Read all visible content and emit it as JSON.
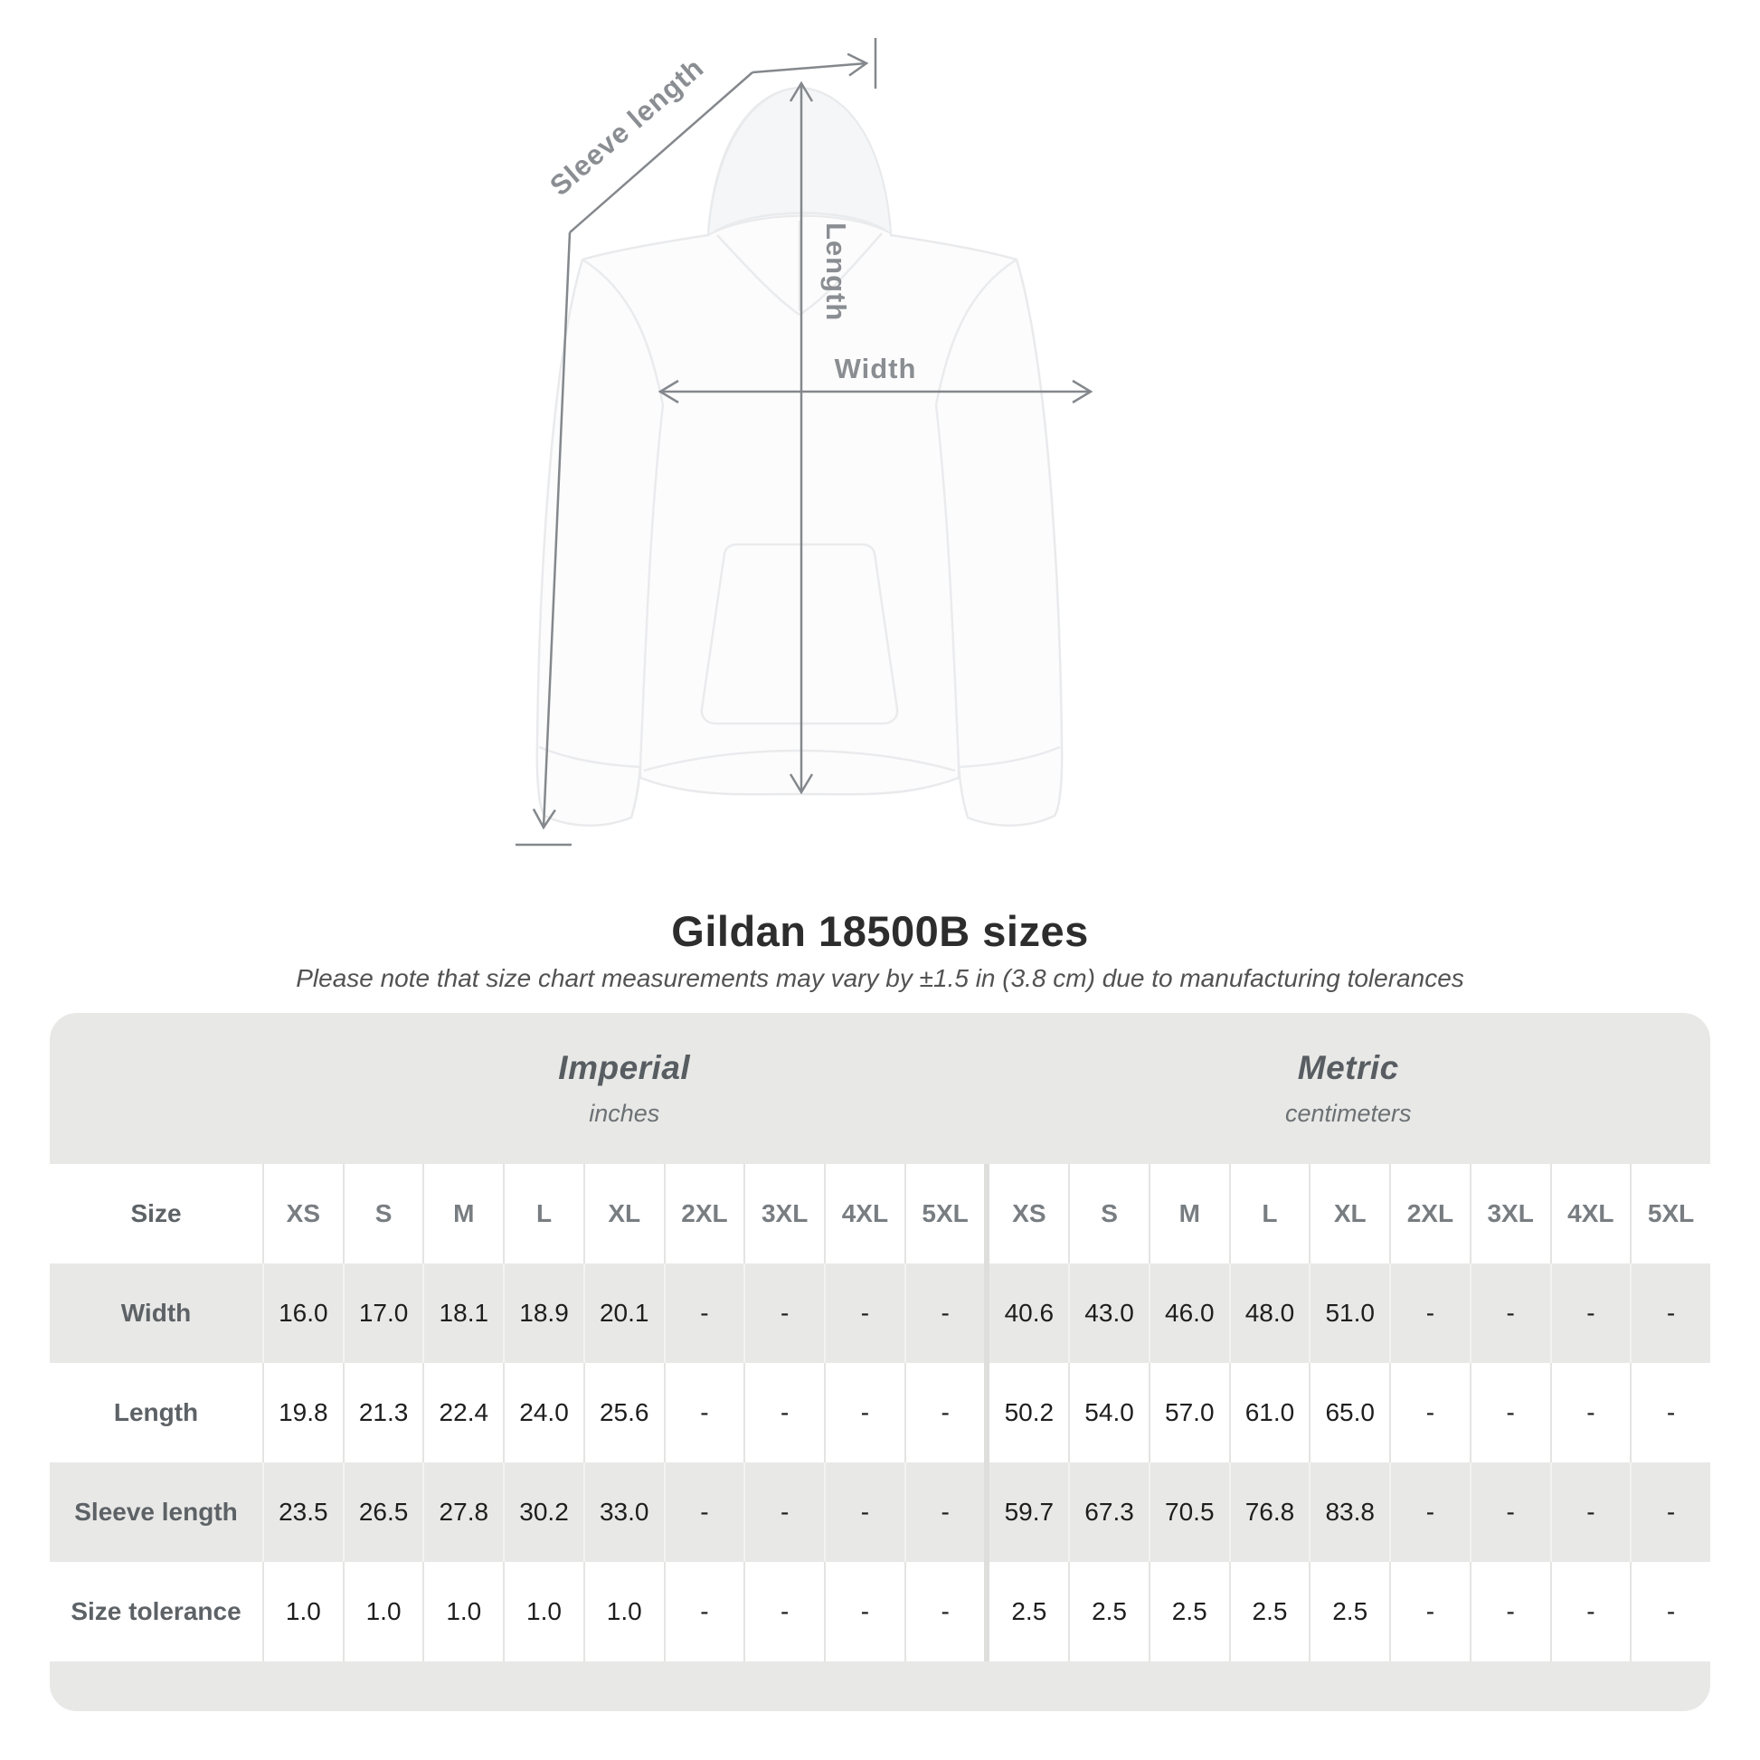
{
  "diagram": {
    "labels": {
      "sleeve_length": "Sleeve length",
      "length": "Length",
      "width": "Width"
    }
  },
  "header": {
    "title": "Gildan 18500B sizes",
    "subtitle": "Please note that size chart measurements may vary by ±1.5 in (3.8 cm) due to manufacturing tolerances"
  },
  "table": {
    "size_header_label": "Size",
    "unit_groups": [
      {
        "name": "Imperial",
        "unit": "inches"
      },
      {
        "name": "Metric",
        "unit": "centimeters"
      }
    ],
    "sizes": [
      "XS",
      "S",
      "M",
      "L",
      "XL",
      "2XL",
      "3XL",
      "4XL",
      "5XL"
    ],
    "rows": [
      {
        "label": "Width",
        "imperial": [
          "16.0",
          "17.0",
          "18.1",
          "18.9",
          "20.1",
          "-",
          "-",
          "-",
          "-"
        ],
        "metric": [
          "40.6",
          "43.0",
          "46.0",
          "48.0",
          "51.0",
          "-",
          "-",
          "-",
          "-"
        ]
      },
      {
        "label": "Length",
        "imperial": [
          "19.8",
          "21.3",
          "22.4",
          "24.0",
          "25.6",
          "-",
          "-",
          "-",
          "-"
        ],
        "metric": [
          "50.2",
          "54.0",
          "57.0",
          "61.0",
          "65.0",
          "-",
          "-",
          "-",
          "-"
        ]
      },
      {
        "label": "Sleeve length",
        "imperial": [
          "23.5",
          "26.5",
          "27.8",
          "30.2",
          "33.0",
          "-",
          "-",
          "-",
          "-"
        ],
        "metric": [
          "59.7",
          "67.3",
          "70.5",
          "76.8",
          "83.8",
          "-",
          "-",
          "-",
          "-"
        ]
      },
      {
        "label": "Size tolerance",
        "imperial": [
          "1.0",
          "1.0",
          "1.0",
          "1.0",
          "1.0",
          "-",
          "-",
          "-",
          "-"
        ],
        "metric": [
          "2.5",
          "2.5",
          "2.5",
          "2.5",
          "2.5",
          "-",
          "-",
          "-",
          "-"
        ]
      }
    ]
  },
  "colors": {
    "table_band_gray": "#e8e8e7",
    "measure_arrow_gray": "#84888c",
    "value_text": "#1e1e1e",
    "heading_text": "#2d2d2d"
  }
}
